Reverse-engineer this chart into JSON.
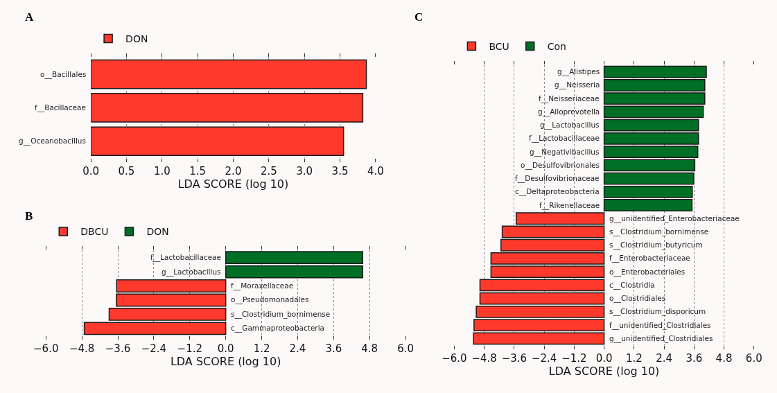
{
  "chart_data": [
    {
      "type": "bar",
      "title": "A",
      "orientation": "horizontal",
      "xlabel": "LDA SCORE (log 10)",
      "categories": [
        "o__Bacillales",
        "f__Bacillaceae",
        "g__Oceanobacillus"
      ],
      "series": [
        {
          "name": "DON",
          "color": "#ff3a2d",
          "values": [
            3.87,
            3.82,
            3.55
          ]
        }
      ],
      "xlim": [
        0,
        4.0
      ],
      "xticks": [
        {
          "value": 0,
          "label": "0.0"
        },
        0.5,
        {
          "value": 1,
          "label": "1.0"
        },
        1.5,
        {
          "value": 2,
          "label": "2.0"
        },
        2.5,
        {
          "value": 3,
          "label": "3.0"
        },
        3.5,
        {
          "value": 4,
          "label": "4.0"
        }
      ],
      "grid": "x",
      "legend": "top"
    },
    {
      "type": "bar",
      "title": "B",
      "orientation": "horizontal",
      "xlabel": "LDA SCORE (log 10)",
      "categories": [
        "f__Lactobacillaceae",
        "g__Lactobacillus",
        "f__Moraxellaceae",
        "o__Pseudomonadales",
        "s__Clostridium_bornimense",
        "c__Gammaproteobacteria"
      ],
      "series": [
        {
          "name": "DBCU",
          "color": "#ff3a2d",
          "values": [
            null,
            null,
            -3.64,
            -3.65,
            -3.89,
            -4.72
          ]
        },
        {
          "name": "DON",
          "color": "#006f26",
          "values": [
            4.57,
            4.57,
            null,
            null,
            null,
            null
          ]
        }
      ],
      "xlim": [
        -6.0,
        6.0
      ],
      "xticks": [
        {
          "value": -6,
          "label": "−6.0"
        },
        {
          "value": -4.8,
          "label": "−4.8"
        },
        {
          "value": -3.6,
          "label": "−3.6"
        },
        {
          "value": -2.4,
          "label": "−2.4"
        },
        {
          "value": -1.2,
          "label": "−1.2"
        },
        {
          "value": 0,
          "label": "0.0"
        },
        1.2,
        2.4,
        3.6,
        4.8,
        {
          "value": 6,
          "label": "6.0"
        }
      ],
      "grid": "x",
      "legend": "top"
    },
    {
      "type": "bar",
      "title": "C",
      "orientation": "horizontal",
      "xlabel": "LDA SCORE (log 10)",
      "categories": [
        "g__Alistipes",
        "g__Neisseria",
        "f__Neisseriaceae",
        "g__Alloprevotella",
        "g__Lactobacillus",
        "f__Lactobacillaceae",
        "g__Negativibacillus",
        "o__Desulfovibrionales",
        "f__Desulfovibrionaceae",
        "c__Deltaproteobacteria",
        "f__Rikenellaceae",
        "g__unidentified_Enterobacteriaceae",
        "s__Clostridium_bornimense",
        "s__Clostridium_butyricum",
        "f__Enterobacteriaceae",
        "o__Enterobacteriales",
        "c__Clostridia",
        "o__Clostridiales",
        "s__Clostridium_disporicum",
        "f__unidentified_Clostridiales",
        "g__unidentified_Clostridiales"
      ],
      "series": [
        {
          "name": "BCU",
          "color": "#ff3a2d",
          "values": [
            null,
            null,
            null,
            null,
            null,
            null,
            null,
            null,
            null,
            null,
            null,
            -3.52,
            -4.08,
            -4.13,
            -4.53,
            -4.53,
            -4.97,
            -4.97,
            -5.12,
            -5.21,
            -5.23
          ]
        },
        {
          "name": "Con",
          "color": "#006f26",
          "values": [
            4.09,
            4.03,
            4.03,
            3.97,
            3.78,
            3.78,
            3.75,
            3.63,
            3.59,
            3.53,
            3.52,
            null,
            null,
            null,
            null,
            null,
            null,
            null,
            null,
            null,
            null
          ]
        }
      ],
      "xlim": [
        -6.0,
        6.0
      ],
      "xticks": [
        {
          "value": -6,
          "label": "−6.0"
        },
        {
          "value": -4.8,
          "label": "−4.8"
        },
        {
          "value": -3.6,
          "label": "−3.6"
        },
        {
          "value": -2.4,
          "label": "−2.4"
        },
        {
          "value": -1.2,
          "label": "−1.2"
        },
        {
          "value": 0,
          "label": "0.0"
        },
        1.2,
        2.4,
        3.6,
        4.8,
        {
          "value": 6,
          "label": "6.0"
        }
      ],
      "grid": "x",
      "legend": "top"
    }
  ]
}
